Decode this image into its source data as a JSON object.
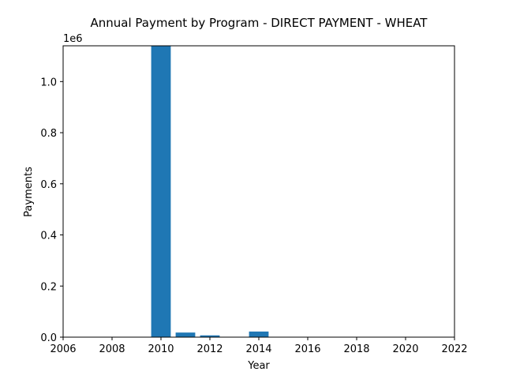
{
  "chart_data": {
    "type": "bar",
    "title": "Annual Payment by Program - DIRECT PAYMENT - WHEAT",
    "xlabel": "Year",
    "ylabel": "Payments",
    "y_offset_label": "1e6",
    "xlim": [
      2006,
      2022
    ],
    "ylim": [
      0,
      1.14
    ],
    "y_unit_multiplier": 1000000,
    "x": [
      2010,
      2011,
      2012,
      2014
    ],
    "values": [
      1140000,
      18000,
      7000,
      22000
    ],
    "x_ticks": [
      "2006",
      "2008",
      "2010",
      "2012",
      "2014",
      "2016",
      "2018",
      "2020",
      "2022"
    ],
    "y_ticks": [
      "0.0",
      "0.2",
      "0.4",
      "0.6",
      "0.8",
      "1.0"
    ],
    "bar_color": "#1f77b4",
    "grid": false,
    "legend": "none"
  }
}
